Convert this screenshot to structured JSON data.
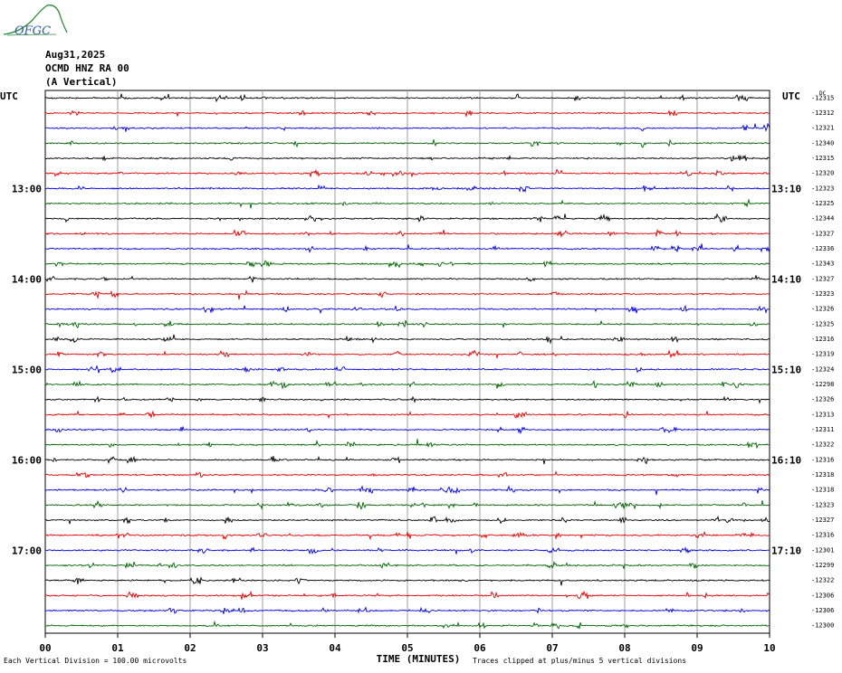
{
  "logo_text": "OFGC",
  "header": {
    "date": "Aug31,2025",
    "station": "OCMD HNZ RA 00",
    "component": "(A Vertical)"
  },
  "footer": {
    "scale_note": "Each Vertical Division =  100.00 microvolts",
    "clip_note": "Traces clipped at plus/minus 5 vertical divisions"
  },
  "chart_data": {
    "type": "line",
    "title": "OCMD HNZ RA 00 (A Vertical)",
    "xlabel": "TIME (MINUTES)",
    "xlim": [
      0,
      10
    ],
    "x_ticks": [
      "00",
      "01",
      "02",
      "03",
      "04",
      "05",
      "06",
      "07",
      "08",
      "09",
      "10"
    ],
    "left_axis_label": "UTC",
    "right_axis_label": "UTC",
    "left_hour_labels": [
      {
        "row": 6,
        "label": "13:00"
      },
      {
        "row": 12,
        "label": "14:00"
      },
      {
        "row": 18,
        "label": "15:00"
      },
      {
        "row": 24,
        "label": "16:00"
      },
      {
        "row": 30,
        "label": "17:00"
      }
    ],
    "right_hour_labels": [
      {
        "row": 6,
        "label": "13:10"
      },
      {
        "row": 12,
        "label": "14:10"
      },
      {
        "row": 18,
        "label": "15:10"
      },
      {
        "row": 24,
        "label": "16:10"
      },
      {
        "row": 30,
        "label": "17:10"
      }
    ],
    "dc_label": "DC",
    "trace_colors": [
      "#000000",
      "#e00000",
      "#0000e0",
      "#006400"
    ],
    "trace_offsets": [
      -12315,
      -12312,
      -12321,
      -12340,
      -12315,
      -12320,
      -12323,
      -12325,
      -12344,
      -12327,
      -12336,
      -12343,
      -12327,
      -12323,
      -12326,
      -12325,
      -12316,
      -12319,
      -12324,
      -12298,
      -12326,
      -12313,
      -12311,
      -12322,
      -12316,
      -12318,
      -12318,
      -12323,
      -12327,
      -12316,
      -12301,
      -12299,
      -12322,
      -12306,
      -12306,
      -12300
    ],
    "grid": true
  }
}
